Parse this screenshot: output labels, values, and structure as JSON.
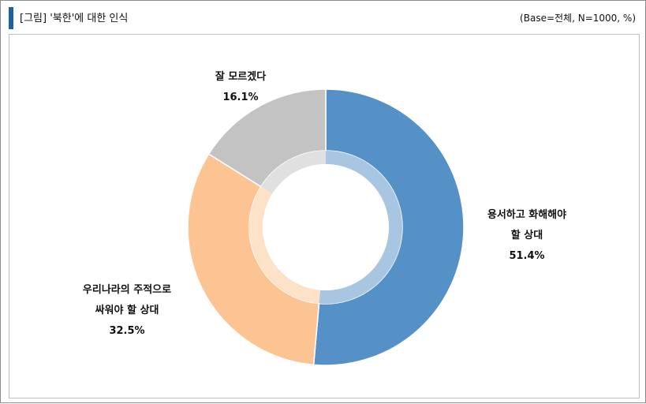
{
  "header": {
    "title": "[그림] '북한'에 대한 인식",
    "base_note": "(Base=전체, N=1000, %)",
    "accent_color": "#1f5fa8"
  },
  "chart_data": {
    "type": "pie",
    "variant": "donut",
    "slices": [
      {
        "label_lines": [
          "용서하고 화해해야",
          "할 상대"
        ],
        "value": 51.4,
        "value_label": "51.4%",
        "color": "#5590c7",
        "inner_color": "#a8c6e2"
      },
      {
        "label_lines": [
          "우리나라의 주적으로",
          "싸워야 할 상대"
        ],
        "value": 32.5,
        "value_label": "32.5%",
        "color": "#fdc493",
        "inner_color": "#fde2c8"
      },
      {
        "label_lines": [
          "잘 모르겠다"
        ],
        "value": 16.1,
        "value_label": "16.1%",
        "color": "#c3c3c3",
        "inner_color": "#e0e0e0"
      }
    ]
  }
}
